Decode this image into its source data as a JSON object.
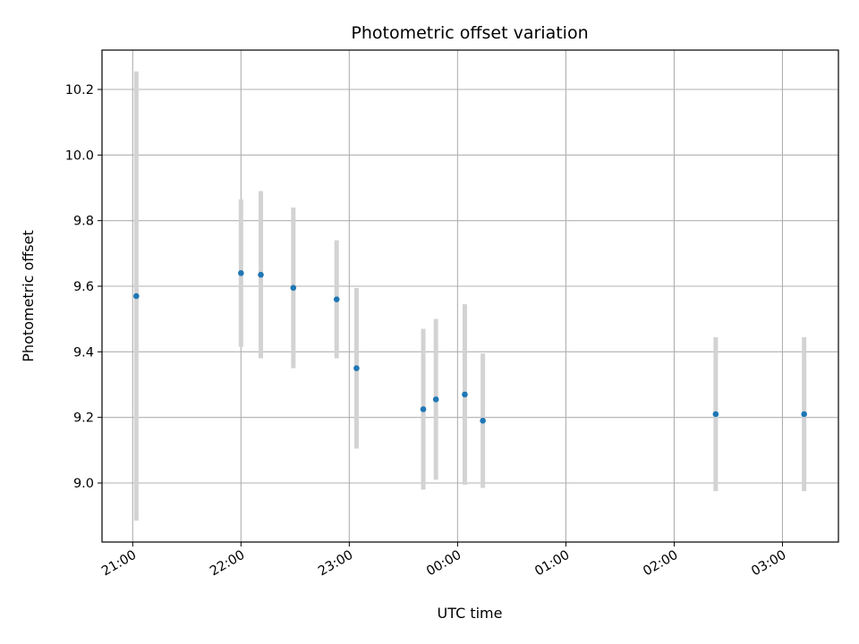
{
  "chart_data": {
    "type": "scatter",
    "title": "Photometric offset variation",
    "xlabel": "UTC time",
    "ylabel": "Photometric offset",
    "x_axis_type": "time",
    "x_ticks": [
      "21:00",
      "22:00",
      "23:00",
      "00:00",
      "01:00",
      "02:00",
      "03:00"
    ],
    "xlim": [
      "20:43",
      "03:31"
    ],
    "ylim": [
      8.82,
      10.32
    ],
    "y_ticks": [
      9.0,
      9.2,
      9.4,
      9.6,
      9.8,
      10.0,
      10.2
    ],
    "grid": true,
    "legend": "none",
    "point_color": "#1f77b4",
    "errorbar_color": "#d3d3d3",
    "points": [
      {
        "x": "21:02",
        "y": 9.57,
        "err": 0.685
      },
      {
        "x": "22:00",
        "y": 9.64,
        "err": 0.225
      },
      {
        "x": "22:11",
        "y": 9.635,
        "err": 0.255
      },
      {
        "x": "22:29",
        "y": 9.595,
        "err": 0.245
      },
      {
        "x": "22:53",
        "y": 9.56,
        "err": 0.18
      },
      {
        "x": "23:04",
        "y": 9.35,
        "err": 0.245
      },
      {
        "x": "23:41",
        "y": 9.225,
        "err": 0.245
      },
      {
        "x": "23:48",
        "y": 9.255,
        "err": 0.245
      },
      {
        "x": "00:04",
        "y": 9.27,
        "err": 0.275
      },
      {
        "x": "00:14",
        "y": 9.19,
        "err": 0.205
      },
      {
        "x": "02:23",
        "y": 9.21,
        "err": 0.235
      },
      {
        "x": "03:12",
        "y": 9.21,
        "err": 0.235
      }
    ]
  }
}
